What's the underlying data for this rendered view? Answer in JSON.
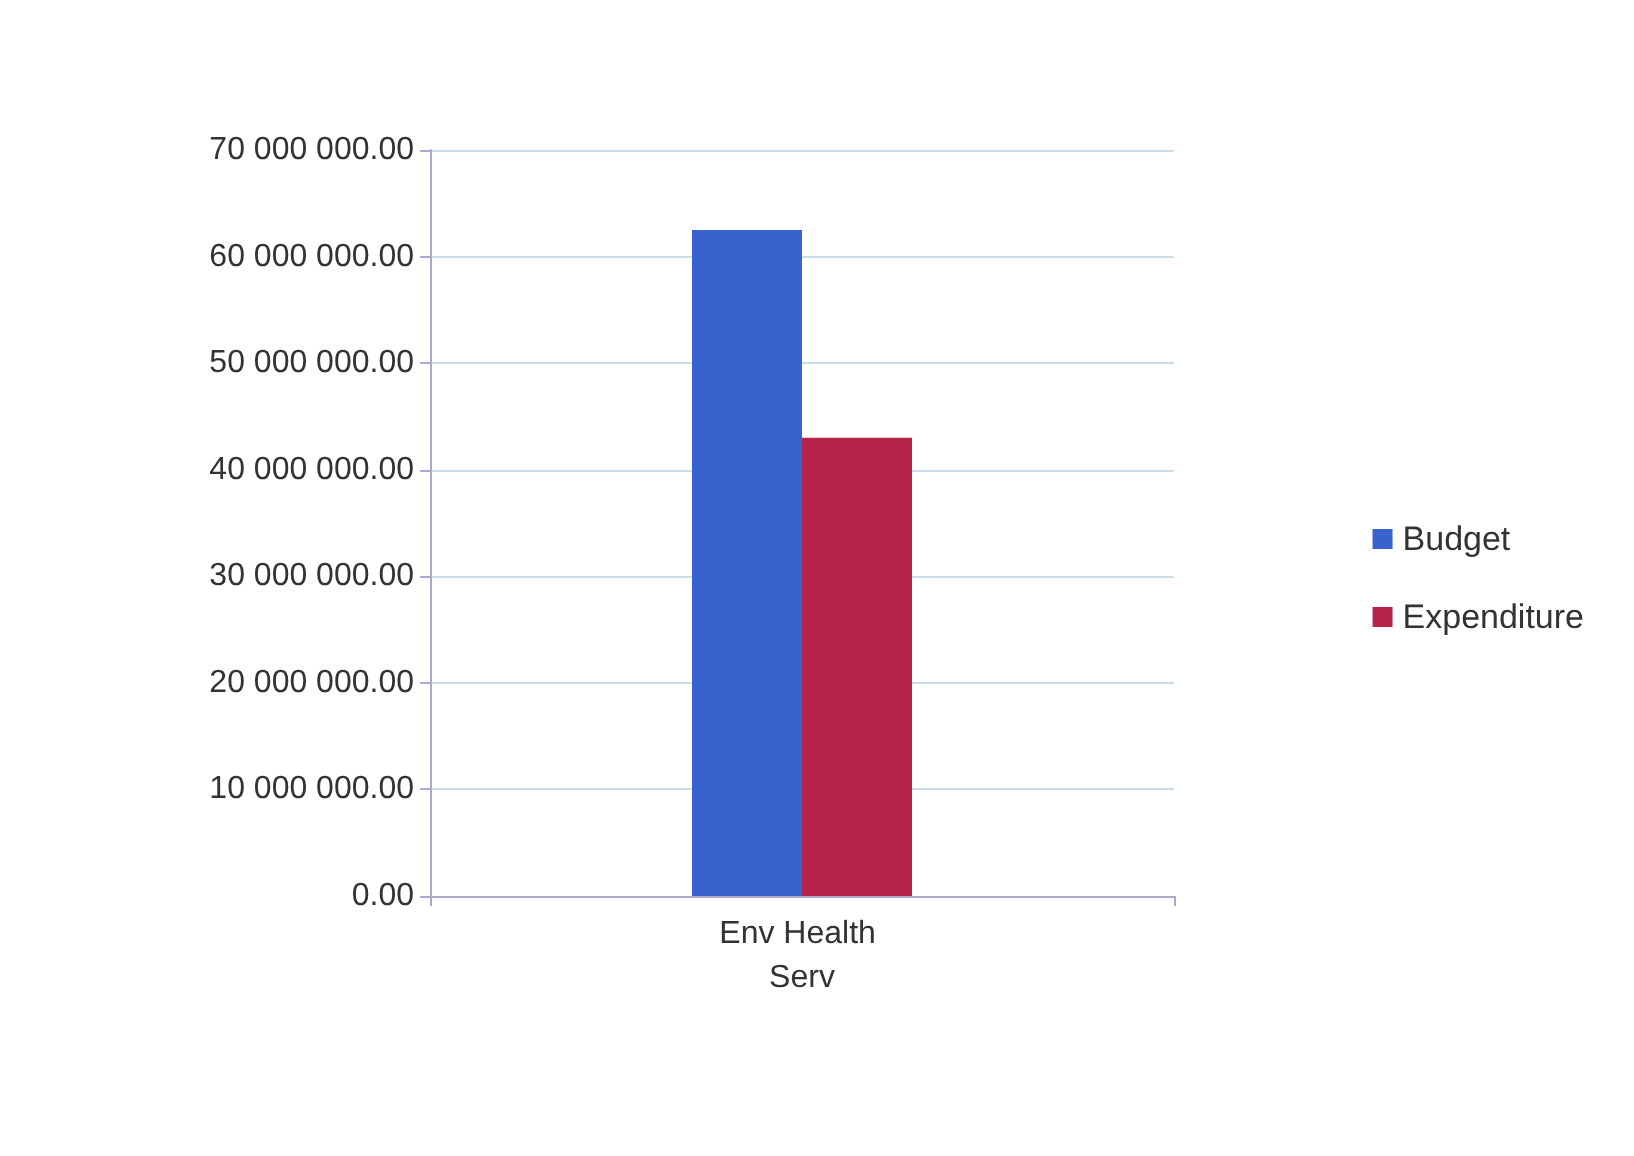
{
  "chart_data": {
    "type": "bar",
    "categories": [
      "Env Health Serv"
    ],
    "series": [
      {
        "name": "Budget",
        "color": "#3a62cf",
        "values": [
          62500000
        ]
      },
      {
        "name": "Expenditure",
        "color": "#b8234b",
        "values": [
          43000000
        ]
      }
    ],
    "ylim": [
      0,
      70000000
    ],
    "yticks": [
      {
        "value": 0,
        "label": "0.00"
      },
      {
        "value": 10000000,
        "label": "10 000 000.00"
      },
      {
        "value": 20000000,
        "label": "20 000 000.00"
      },
      {
        "value": 30000000,
        "label": "30 000 000.00"
      },
      {
        "value": 40000000,
        "label": "40 000 000.00"
      },
      {
        "value": 50000000,
        "label": "50 000 000.00"
      },
      {
        "value": 60000000,
        "label": "60 000 000.00"
      },
      {
        "value": 70000000,
        "label": "70 000 000.00"
      }
    ],
    "grid": "y",
    "legend": "right"
  }
}
